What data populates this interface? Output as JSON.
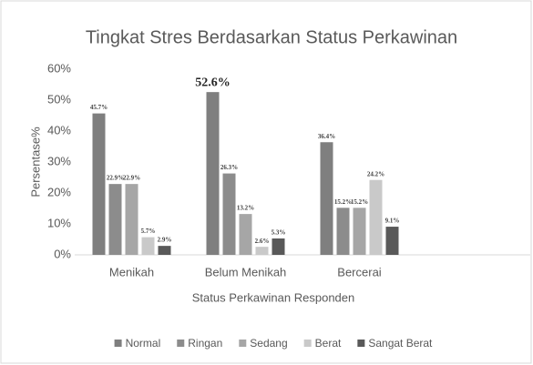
{
  "chart_data": {
    "type": "bar",
    "title": "Tingkat Stres Berdasarkan Status Perkawinan",
    "xlabel": "Status Perkawinan Responden",
    "ylabel": "Persentase%",
    "categories": [
      "Menikah",
      "Belum Menikah",
      "Bercerai",
      null
    ],
    "series": [
      {
        "name": "Normal",
        "color": "#7f7f7f",
        "values": [
          45.7,
          52.6,
          36.4,
          null
        ],
        "value_labels": [
          "45.7%",
          "52.6%",
          "36.4%",
          null
        ]
      },
      {
        "name": "Ringan",
        "color": "#8c8c8c",
        "values": [
          22.9,
          26.3,
          15.2,
          null
        ],
        "value_labels": [
          "22.9%",
          "26.3%",
          "15.2%",
          null
        ]
      },
      {
        "name": "Sedang",
        "color": "#a6a6a6",
        "values": [
          22.9,
          13.2,
          15.2,
          null
        ],
        "value_labels": [
          "22.9%",
          "13.2%",
          "15.2%",
          null
        ]
      },
      {
        "name": "Berat",
        "color": "#c9c9c9",
        "values": [
          5.7,
          2.6,
          24.2,
          null
        ],
        "value_labels": [
          "5.7%",
          "2.6%",
          "24.2%",
          null
        ]
      },
      {
        "name": "Sangat Berat",
        "color": "#595959",
        "values": [
          2.9,
          5.3,
          9.1,
          null
        ],
        "value_labels": [
          "2.9%",
          "5.3%",
          "9.1%",
          null
        ]
      }
    ],
    "ylim": [
      0,
      60
    ],
    "yticks": [
      {
        "value": 0,
        "label": "0%"
      },
      {
        "value": 10,
        "label": "10%"
      },
      {
        "value": 20,
        "label": "20%"
      },
      {
        "value": 30,
        "label": "30%"
      },
      {
        "value": 40,
        "label": "40%"
      },
      {
        "value": 50,
        "label": "50%"
      },
      {
        "value": 60,
        "label": "60%"
      }
    ],
    "grid": false,
    "legend": "bottom"
  }
}
